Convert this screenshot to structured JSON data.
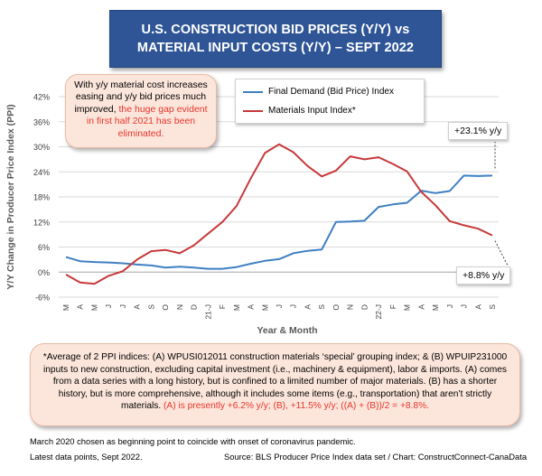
{
  "title": {
    "line1": "U.S. CONSTRUCTION BID PRICES (Y/Y) vs",
    "line2": "MATERIAL INPUT COSTS (Y/Y) –  SEPT 2022"
  },
  "callout": {
    "text_black": "With y/y material cost increases easing and y/y bid prices much improved, ",
    "text_red": "the huge gap evident in first half 2021 has been eliminated."
  },
  "footnote": {
    "text_black": "*Average of 2 PPI indices: (A) WPUSI012011 construction materials ‘special’ grouping index; & (B) WPUIP231000 inputs to new construction, excluding capital investment (i.e., machinery & equipment), labor & imports. (A) comes from a data series with a long history, but is confined to a limited number of major materials. (B) has a shorter history, but is more comprehensive, although it includes some items (e.g., transportation) that aren’t strictly materials. ",
    "text_red": "(A) is presently +6.2% y/y; (B), +11.5% y/y; ((A) + (B))/2 = +8.8%."
  },
  "notes": {
    "line1": "March 2020 chosen as beginning point to coincide with onset of coronavirus pandemic.",
    "line2": "Latest data points, Sept 2022.",
    "source": "Source: BLS Producer Price Index data set / Chart: ConstructConnect-CanaData"
  },
  "labels": {
    "bid_latest": "+23.1% y/y",
    "material_latest": "+8.8% y/y"
  },
  "colors": {
    "bid": "#3f7fc3",
    "material": "#c6393a",
    "red_text": "#e8352a",
    "title_bg": "#2f5597"
  },
  "chart_data": {
    "type": "line",
    "title": "",
    "xlabel": "Year & Month",
    "ylabel": "Y/Y Change in Producer Price Index (PPI)",
    "ylim": [
      -6,
      42
    ],
    "yticks": [
      "-6%",
      "0%",
      "6%",
      "12%",
      "18%",
      "24%",
      "30%",
      "36%",
      "42%"
    ],
    "grid": true,
    "x": [
      "M",
      "A",
      "M",
      "J",
      "J",
      "A",
      "S",
      "O",
      "N",
      "D",
      "21-J",
      "F",
      "M",
      "A",
      "M",
      "J",
      "J",
      "A",
      "S",
      "O",
      "N",
      "D",
      "22-J",
      "F",
      "M",
      "A",
      "M",
      "J",
      "J",
      "A",
      "S"
    ],
    "series": [
      {
        "name": "Final Demand (Bid Price) Index",
        "values": [
          3.6,
          2.6,
          2.4,
          2.3,
          2.1,
          1.8,
          1.6,
          1.1,
          1.3,
          1.1,
          0.8,
          0.8,
          1.2,
          2.0,
          2.7,
          3.1,
          4.5,
          5.1,
          5.4,
          12.0,
          12.1,
          12.3,
          15.6,
          16.2,
          16.6,
          19.5,
          18.9,
          19.4,
          23.1,
          23.0,
          23.1
        ]
      },
      {
        "name": "Materials Input Index*",
        "values": [
          -0.6,
          -2.5,
          -2.8,
          -0.9,
          0.2,
          3.0,
          5.0,
          5.3,
          4.5,
          6.4,
          9.2,
          12.0,
          15.8,
          22.4,
          28.5,
          30.6,
          28.7,
          25.4,
          22.9,
          24.3,
          27.7,
          27.0,
          27.5,
          25.9,
          24.1,
          19.2,
          16.0,
          12.2,
          11.2,
          10.4,
          8.8
        ]
      }
    ]
  }
}
